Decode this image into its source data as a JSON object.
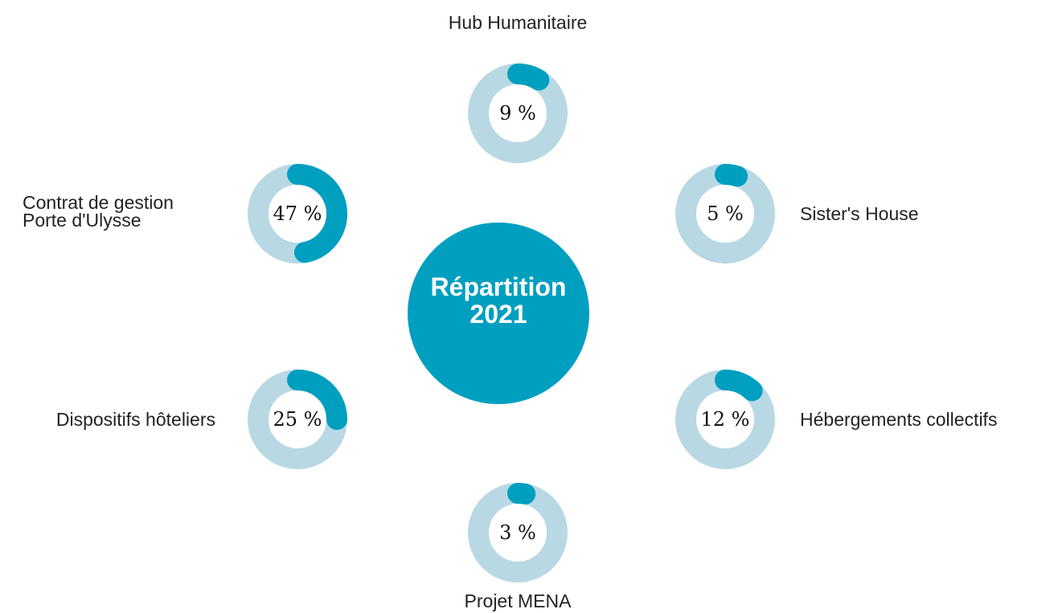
{
  "chart_data": {
    "type": "donut",
    "title": "Répartition\n2021",
    "categories": [
      "Hub Humanitaire",
      "Sister's House",
      "Hébergements collectifs",
      "Projet MENA",
      "Dispositifs hôteliers",
      "Contrat de gestion\nPorte d'Ulysse"
    ],
    "values": [
      9,
      5,
      12,
      3,
      25,
      47
    ],
    "value_labels": [
      "9 %",
      "5 %",
      "12 %",
      "3 %",
      "25 %",
      "47 %"
    ],
    "color": "#009fc0",
    "track_color": "#b8d8e4"
  }
}
